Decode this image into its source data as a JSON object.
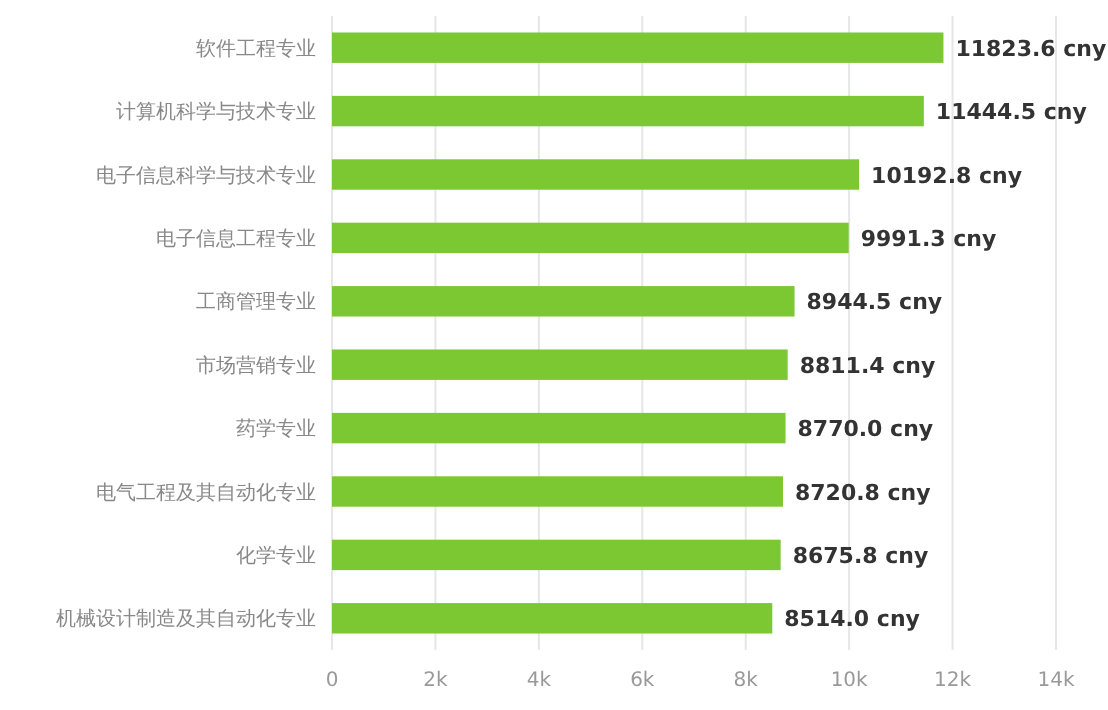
{
  "chart_data": {
    "type": "bar",
    "orientation": "horizontal",
    "categories": [
      "软件工程专业",
      "计算机科学与技术专业",
      "电子信息科学与技术专业",
      "电子信息工程专业",
      "工商管理专业",
      "市场营销专业",
      "药学专业",
      "电气工程及其自动化专业",
      "化学专业",
      "机械设计制造及其自动化专业"
    ],
    "values": [
      11823.6,
      11444.5,
      10192.8,
      9991.3,
      8944.5,
      8811.4,
      8770.0,
      8720.8,
      8675.8,
      8514.0
    ],
    "value_labels": [
      "11823.6 cny",
      "11444.5 cny",
      "10192.8 cny",
      "9991.3 cny",
      "8944.5 cny",
      "8811.4 cny",
      "8770.0 cny",
      "8720.8 cny",
      "8675.8 cny",
      "8514.0 cny"
    ],
    "color": "#7cc832",
    "xlim": [
      0,
      14000
    ],
    "xticks": [
      {
        "value": 0,
        "label": "0"
      },
      {
        "value": 2000,
        "label": "2k"
      },
      {
        "value": 4000,
        "label": "4k"
      },
      {
        "value": 6000,
        "label": "6k"
      },
      {
        "value": 8000,
        "label": "8k"
      },
      {
        "value": 10000,
        "label": "10k"
      },
      {
        "value": 12000,
        "label": "12k"
      },
      {
        "value": 14000,
        "label": "14k"
      }
    ],
    "grid": "x"
  }
}
